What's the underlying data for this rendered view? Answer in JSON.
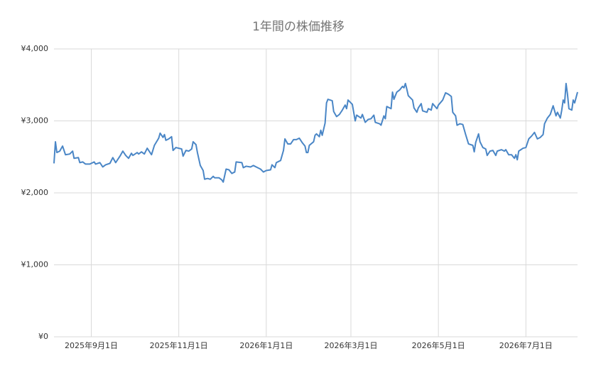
{
  "chart_data": {
    "type": "line",
    "title": "1年間の株価推移",
    "color": "#4a86c6",
    "grid": true,
    "xlim": [
      "2025-08-06",
      "2026-08-06"
    ],
    "xticks": [
      {
        "value": "2025-09-01",
        "label": "2025年9月1日"
      },
      {
        "value": "2025-11-01",
        "label": "2025年11月1日"
      },
      {
        "value": "2026-01-01",
        "label": "2026年1月1日"
      },
      {
        "value": "2026-03-01",
        "label": "2026年3月1日"
      },
      {
        "value": "2026-05-01",
        "label": "2026年5月1日"
      },
      {
        "value": "2026-07-01",
        "label": "2026年7月1日"
      }
    ],
    "ylim": [
      0,
      4000
    ],
    "yticks": [
      {
        "value": 0,
        "label": "¥0"
      },
      {
        "value": 1000,
        "label": "¥1,000"
      },
      {
        "value": 2000,
        "label": "¥2,000"
      },
      {
        "value": 3000,
        "label": "¥3,000"
      },
      {
        "value": 4000,
        "label": "¥4,000"
      }
    ],
    "x": [
      "2025-08-06",
      "2025-08-07",
      "2025-08-08",
      "2025-08-10",
      "2025-08-12",
      "2025-08-14",
      "2025-08-17",
      "2025-08-19",
      "2025-08-20",
      "2025-08-23",
      "2025-08-24",
      "2025-08-26",
      "2025-08-28",
      "2025-08-31",
      "2025-09-03",
      "2025-09-04",
      "2025-09-07",
      "2025-09-09",
      "2025-09-11",
      "2025-09-14",
      "2025-09-16",
      "2025-09-18",
      "2025-09-21",
      "2025-09-23",
      "2025-09-25",
      "2025-09-27",
      "2025-09-29",
      "2025-09-30",
      "2025-10-03",
      "2025-10-04",
      "2025-10-06",
      "2025-10-08",
      "2025-10-10",
      "2025-10-13",
      "2025-10-15",
      "2025-10-18",
      "2025-10-19",
      "2025-10-21",
      "2025-10-22",
      "2025-10-23",
      "2025-10-25",
      "2025-10-27",
      "2025-10-28",
      "2025-10-30",
      "2025-11-03",
      "2025-11-04",
      "2025-11-06",
      "2025-11-08",
      "2025-11-10",
      "2025-11-11",
      "2025-11-13",
      "2025-11-14",
      "2025-11-16",
      "2025-11-18",
      "2025-11-19",
      "2025-11-21",
      "2025-11-23",
      "2025-11-25",
      "2025-11-26",
      "2025-11-29",
      "2025-12-01",
      "2025-12-02",
      "2025-12-04",
      "2025-12-06",
      "2025-12-08",
      "2025-12-10",
      "2025-12-11",
      "2025-12-15",
      "2025-12-16",
      "2025-12-18",
      "2025-12-21",
      "2025-12-23",
      "2025-12-26",
      "2025-12-28",
      "2025-12-30",
      "2026-01-01",
      "2026-01-04",
      "2026-01-05",
      "2026-01-07",
      "2026-01-08",
      "2026-01-11",
      "2026-01-13",
      "2026-01-14",
      "2026-01-16",
      "2026-01-18",
      "2026-01-20",
      "2026-01-22",
      "2026-01-24",
      "2026-01-26",
      "2026-01-28",
      "2026-01-29",
      "2026-01-30",
      "2026-01-31",
      "2026-02-03",
      "2026-02-04",
      "2026-02-05",
      "2026-02-07",
      "2026-02-08",
      "2026-02-09",
      "2026-02-11",
      "2026-02-12",
      "2026-02-13",
      "2026-02-16",
      "2026-02-17",
      "2026-02-19",
      "2026-02-21",
      "2026-02-23",
      "2026-02-25",
      "2026-02-26",
      "2026-02-27",
      "2026-03-02",
      "2026-03-04",
      "2026-03-05",
      "2026-03-08",
      "2026-03-09",
      "2026-03-11",
      "2026-03-13",
      "2026-03-15",
      "2026-03-17",
      "2026-03-18",
      "2026-03-21",
      "2026-03-22",
      "2026-03-24",
      "2026-03-25",
      "2026-03-26",
      "2026-03-29",
      "2026-03-30",
      "2026-03-31",
      "2026-04-02",
      "2026-04-04",
      "2026-04-06",
      "2026-04-07",
      "2026-04-08",
      "2026-04-09",
      "2026-04-10",
      "2026-04-13",
      "2026-04-14",
      "2026-04-16",
      "2026-04-17",
      "2026-04-19",
      "2026-04-20",
      "2026-04-23",
      "2026-04-24",
      "2026-04-26",
      "2026-04-27",
      "2026-04-30",
      "2026-05-01",
      "2026-05-04",
      "2026-05-06",
      "2026-05-08",
      "2026-05-10",
      "2026-05-11",
      "2026-05-13",
      "2026-05-14",
      "2026-05-16",
      "2026-05-18",
      "2026-05-20",
      "2026-05-22",
      "2026-05-25",
      "2026-05-26",
      "2026-05-27",
      "2026-05-29",
      "2026-05-30",
      "2026-06-01",
      "2026-06-03",
      "2026-06-04",
      "2026-06-06",
      "2026-06-08",
      "2026-06-10",
      "2026-06-11",
      "2026-06-14",
      "2026-06-16",
      "2026-06-17",
      "2026-06-19",
      "2026-06-21",
      "2026-06-23",
      "2026-06-24",
      "2026-06-25",
      "2026-06-26",
      "2026-06-29",
      "2026-07-01",
      "2026-07-03",
      "2026-07-05",
      "2026-07-07",
      "2026-07-09",
      "2026-07-11",
      "2026-07-13",
      "2026-07-14",
      "2026-07-16",
      "2026-07-18",
      "2026-07-20",
      "2026-07-22",
      "2026-07-23",
      "2026-07-25",
      "2026-07-26",
      "2026-07-27",
      "2026-07-28",
      "2026-07-29",
      "2026-07-30",
      "2026-07-31",
      "2026-08-02",
      "2026-08-03",
      "2026-08-04",
      "2026-08-06"
    ],
    "values": [
      2410,
      2710,
      2560,
      2580,
      2650,
      2530,
      2540,
      2580,
      2480,
      2490,
      2420,
      2430,
      2400,
      2400,
      2430,
      2400,
      2420,
      2360,
      2390,
      2410,
      2490,
      2420,
      2510,
      2580,
      2520,
      2480,
      2550,
      2520,
      2560,
      2540,
      2570,
      2540,
      2620,
      2530,
      2660,
      2760,
      2830,
      2770,
      2810,
      2730,
      2750,
      2780,
      2590,
      2630,
      2610,
      2510,
      2590,
      2580,
      2610,
      2710,
      2670,
      2560,
      2380,
      2310,
      2190,
      2200,
      2190,
      2230,
      2210,
      2210,
      2180,
      2150,
      2330,
      2320,
      2270,
      2290,
      2430,
      2420,
      2350,
      2370,
      2360,
      2380,
      2350,
      2330,
      2290,
      2310,
      2320,
      2390,
      2350,
      2420,
      2450,
      2590,
      2750,
      2680,
      2680,
      2740,
      2740,
      2760,
      2700,
      2650,
      2560,
      2560,
      2660,
      2710,
      2800,
      2820,
      2780,
      2870,
      2800,
      2970,
      3250,
      3300,
      3280,
      3130,
      3060,
      3090,
      3150,
      3220,
      3170,
      3290,
      3230,
      3000,
      3080,
      3040,
      3090,
      2980,
      3020,
      3030,
      3080,
      2980,
      2960,
      2940,
      3070,
      3030,
      3200,
      3170,
      3400,
      3300,
      3400,
      3430,
      3480,
      3460,
      3520,
      3440,
      3350,
      3290,
      3180,
      3120,
      3180,
      3240,
      3140,
      3120,
      3170,
      3150,
      3240,
      3170,
      3220,
      3290,
      3390,
      3370,
      3340,
      3120,
      3070,
      2940,
      2960,
      2950,
      2810,
      2680,
      2660,
      2570,
      2700,
      2820,
      2710,
      2630,
      2610,
      2520,
      2580,
      2590,
      2520,
      2580,
      2600,
      2580,
      2600,
      2530,
      2530,
      2480,
      2530,
      2460,
      2580,
      2620,
      2630,
      2750,
      2790,
      2840,
      2750,
      2770,
      2810,
      2960,
      3040,
      3090,
      3210,
      3070,
      3120,
      3040,
      3150,
      3290,
      3250,
      3520,
      3370,
      3170,
      3150,
      3290,
      3250,
      3400
    ]
  }
}
